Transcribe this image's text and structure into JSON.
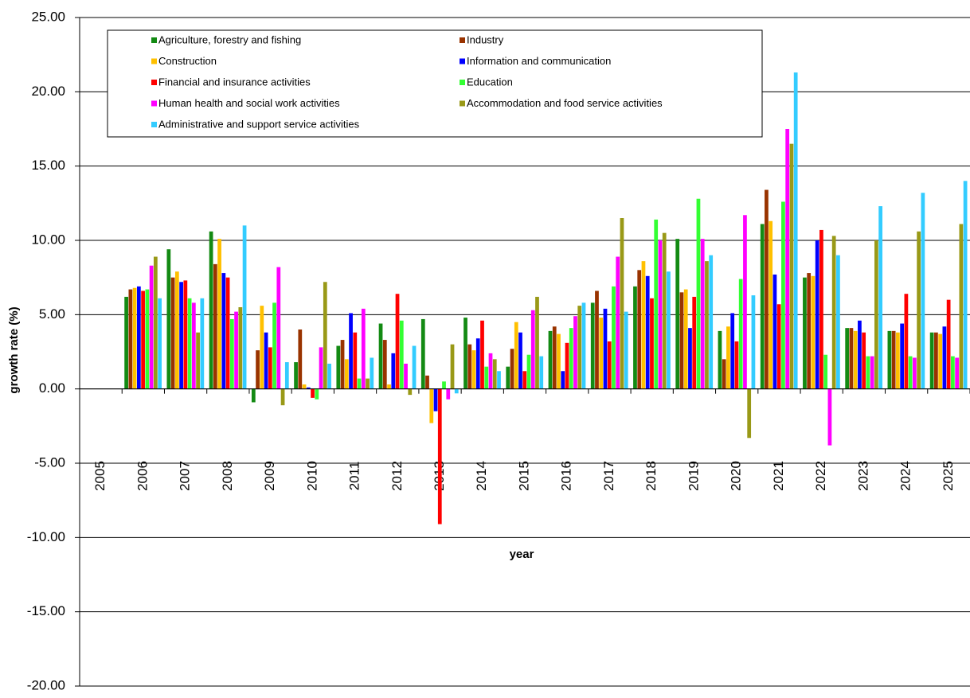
{
  "chart_data": {
    "type": "bar",
    "y_label": "growth rate (%)",
    "x_label": "year",
    "categories": [
      "2005",
      "2006",
      "2007",
      "2008",
      "2009",
      "2010",
      "2011",
      "2012",
      "2013",
      "2014",
      "2015",
      "2016",
      "2017",
      "2018",
      "2019",
      "2020",
      "2021",
      "2022",
      "2023",
      "2024",
      "2025"
    ],
    "series": [
      {
        "name": "Agriculture, forestry and fishing",
        "color": "#138a13",
        "values": [
          null,
          6.2,
          9.4,
          10.6,
          -0.9,
          1.8,
          2.9,
          4.4,
          4.7,
          4.8,
          1.5,
          3.9,
          5.8,
          6.9,
          10.1,
          3.9,
          11.1,
          7.5,
          4.1,
          3.9,
          3.8
        ]
      },
      {
        "name": "Industry",
        "color": "#993300",
        "values": [
          null,
          6.7,
          7.5,
          8.4,
          2.6,
          4.0,
          3.3,
          3.3,
          0.9,
          3.0,
          2.7,
          4.2,
          6.6,
          8.0,
          6.5,
          2.0,
          13.4,
          7.8,
          4.1,
          3.9,
          3.8
        ]
      },
      {
        "name": "Construction",
        "color": "#ffc000",
        "values": [
          null,
          6.8,
          7.9,
          10.1,
          5.6,
          0.3,
          2.0,
          0.3,
          -2.3,
          2.6,
          4.5,
          3.7,
          4.8,
          8.6,
          6.7,
          4.2,
          11.3,
          7.6,
          3.9,
          3.8,
          3.7
        ]
      },
      {
        "name": "Information and communication",
        "color": "#0000ff",
        "values": [
          null,
          6.9,
          7.2,
          7.8,
          3.8,
          0.1,
          5.1,
          2.4,
          -1.5,
          3.4,
          3.8,
          1.2,
          5.4,
          7.6,
          4.1,
          5.1,
          7.7,
          10.0,
          4.6,
          4.4,
          4.2
        ]
      },
      {
        "name": "Financial and insurance activities",
        "color": "#ff0000",
        "values": [
          null,
          6.6,
          7.3,
          7.5,
          2.8,
          -0.6,
          3.8,
          6.4,
          -9.1,
          4.6,
          1.2,
          3.1,
          3.2,
          6.1,
          6.2,
          3.2,
          5.7,
          10.7,
          3.8,
          6.4,
          6.0
        ]
      },
      {
        "name": "Education",
        "color": "#33ff33",
        "values": [
          null,
          6.7,
          6.1,
          4.7,
          5.8,
          -0.7,
          0.7,
          4.6,
          0.5,
          1.5,
          2.3,
          4.1,
          6.9,
          11.4,
          12.8,
          7.4,
          12.6,
          2.3,
          2.2,
          2.2,
          2.2
        ]
      },
      {
        "name": "Human health and social work activities",
        "color": "#ff00ff",
        "values": [
          null,
          8.3,
          5.8,
          5.2,
          8.2,
          2.8,
          5.4,
          1.7,
          -0.7,
          2.4,
          5.3,
          4.9,
          8.9,
          10.0,
          10.1,
          11.7,
          17.5,
          -3.8,
          2.2,
          2.1,
          2.1
        ]
      },
      {
        "name": "Accommodation and food service activities",
        "color": "#999917",
        "values": [
          null,
          8.9,
          3.8,
          5.5,
          -1.1,
          7.2,
          0.7,
          -0.4,
          3.0,
          2.0,
          6.2,
          5.6,
          11.5,
          10.5,
          8.6,
          -3.3,
          16.5,
          10.3,
          10.0,
          10.6,
          11.1
        ]
      },
      {
        "name": "Administrative and support service activities",
        "color": "#33ccff",
        "values": [
          null,
          6.1,
          6.1,
          11.0,
          1.8,
          1.7,
          2.1,
          2.9,
          -0.3,
          1.2,
          2.2,
          5.8,
          5.2,
          7.9,
          9.0,
          6.3,
          21.3,
          9.0,
          12.3,
          13.2,
          14.0
        ]
      }
    ],
    "ylim": [
      -20,
      25
    ],
    "yticks": [
      {
        "value": -20,
        "label": "-20.00"
      },
      {
        "value": -15,
        "label": "-15.00"
      },
      {
        "value": -10,
        "label": "-10.00"
      },
      {
        "value": -5,
        "label": "-5.00"
      },
      {
        "value": 0,
        "label": "0.00"
      },
      {
        "value": 5,
        "label": "5.00"
      },
      {
        "value": 10,
        "label": "10.00"
      },
      {
        "value": 15,
        "label": "15.00"
      },
      {
        "value": 20,
        "label": "20.00"
      },
      {
        "value": 25,
        "label": "25.00"
      }
    ],
    "grid": true,
    "legend": "top"
  }
}
